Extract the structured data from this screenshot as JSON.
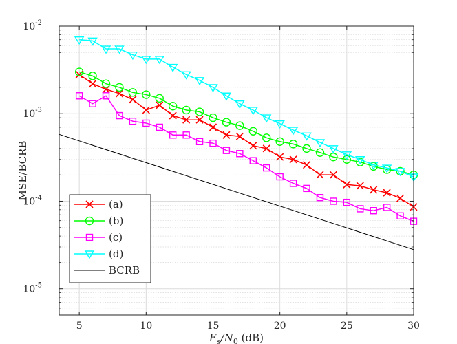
{
  "chart_data": {
    "type": "line",
    "title": "",
    "xlabel_main": "E",
    "xlabel_sub1": "s",
    "xlabel_mid": "/N",
    "xlabel_sub2": "0",
    "xlabel_unit": " (dB)",
    "ylabel": "MSE/BCRB",
    "xscale": "linear",
    "yscale": "log",
    "xlim": [
      3.5,
      30
    ],
    "ylim": [
      5e-06,
      0.01
    ],
    "xticks": [
      5,
      10,
      15,
      20,
      25,
      30
    ],
    "xtick_labels": [
      "5",
      "10",
      "15",
      "20",
      "25",
      "30"
    ],
    "yticks": [
      1e-05,
      0.0001,
      0.001,
      0.01
    ],
    "ytick_labels": [
      {
        "base": "10",
        "exp": "-5"
      },
      {
        "base": "10",
        "exp": "-4"
      },
      {
        "base": "10",
        "exp": "-3"
      },
      {
        "base": "10",
        "exp": "-2"
      }
    ],
    "grid": true,
    "legend_position": "bottom-left",
    "x": [
      5,
      6,
      7,
      8,
      9,
      10,
      11,
      12,
      13,
      14,
      15,
      16,
      17,
      18,
      19,
      20,
      21,
      22,
      23,
      24,
      25,
      26,
      27,
      28,
      29,
      30
    ],
    "series": [
      {
        "name": "(a)",
        "color": "#ff0000",
        "marker": "x",
        "values": [
          0.0028,
          0.0022,
          0.0019,
          0.0017,
          0.00145,
          0.0011,
          0.00125,
          0.00095,
          0.00085,
          0.00085,
          0.0007,
          0.00057,
          0.00055,
          0.00043,
          0.0004,
          0.00032,
          0.0003,
          0.00026,
          0.0002,
          0.0002,
          0.000155,
          0.00015,
          0.000135,
          0.000125,
          0.000108,
          8.6e-05
        ]
      },
      {
        "name": "(b)",
        "color": "#00ff00",
        "marker": "o",
        "values": [
          0.003,
          0.0027,
          0.0022,
          0.002,
          0.00175,
          0.00165,
          0.0015,
          0.00122,
          0.0011,
          0.00105,
          0.0009,
          0.0008,
          0.00073,
          0.00063,
          0.00053,
          0.00048,
          0.00045,
          0.0004,
          0.00036,
          0.00032,
          0.0003,
          0.00028,
          0.00025,
          0.00023,
          0.00022,
          0.0002
        ]
      },
      {
        "name": "(c)",
        "color": "#ff00ff",
        "marker": "s",
        "values": [
          0.0016,
          0.0013,
          0.0016,
          0.00095,
          0.00082,
          0.00078,
          0.0007,
          0.00057,
          0.00057,
          0.00048,
          0.00046,
          0.00038,
          0.00035,
          0.00029,
          0.00024,
          0.00019,
          0.00016,
          0.00014,
          0.00011,
          0.0001,
          9.7e-05,
          8.2e-05,
          7.8e-05,
          8.5e-05,
          6.8e-05,
          5.9e-05
        ]
      },
      {
        "name": "(d)",
        "color": "#00ffff",
        "marker": "v",
        "values": [
          0.007,
          0.0068,
          0.0055,
          0.0055,
          0.0047,
          0.0042,
          0.0042,
          0.0034,
          0.0028,
          0.0024,
          0.002,
          0.0016,
          0.0013,
          0.0011,
          0.0009,
          0.00077,
          0.00065,
          0.00056,
          0.00047,
          0.0004,
          0.00034,
          0.0003,
          0.00026,
          0.00024,
          0.00022,
          0.00019
        ]
      },
      {
        "name": "BCRB",
        "color": "#000000",
        "marker": "none",
        "x_line": [
          3.5,
          30
        ],
        "values_line": [
          0.00058,
          2.8e-05
        ]
      }
    ]
  }
}
